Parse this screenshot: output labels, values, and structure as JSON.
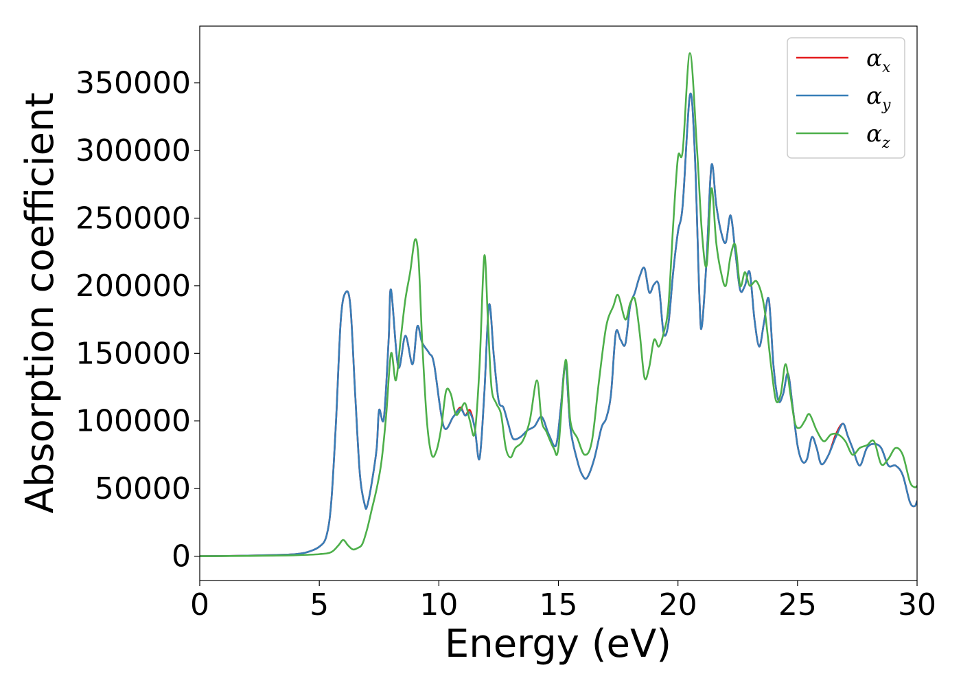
{
  "chart_data": {
    "type": "line",
    "xlabel": "Energy (eV)",
    "ylabel": "Absorption coefficient",
    "xlim": [
      0,
      30
    ],
    "ylim": [
      -18000,
      392000
    ],
    "xticks": [
      0,
      5,
      10,
      15,
      20,
      25,
      30
    ],
    "yticks": [
      0,
      50000,
      100000,
      150000,
      200000,
      250000,
      300000,
      350000
    ],
    "grid": false,
    "legend_position": "top-right",
    "legend": [
      {
        "base": "α",
        "sub": "x",
        "color": "#e41a1c"
      },
      {
        "base": "α",
        "sub": "y",
        "color": "#377eb8"
      },
      {
        "base": "α",
        "sub": "z",
        "color": "#4daf4a"
      }
    ],
    "series": [
      {
        "name": "αx",
        "color": "#e41a1c",
        "x": [
          0,
          1,
          2,
          3,
          4,
          4.5,
          5,
          5.3,
          5.5,
          5.7,
          5.9,
          6.1,
          6.3,
          6.5,
          6.7,
          6.9,
          7.0,
          7.2,
          7.4,
          7.5,
          7.7,
          7.9,
          8.0,
          8.3,
          8.6,
          8.9,
          9.1,
          9.3,
          9.6,
          9.8,
          10.2,
          10.6,
          10.9,
          11.1,
          11.3,
          11.5,
          11.7,
          11.9,
          12.1,
          12.3,
          12.5,
          12.7,
          12.9,
          13.1,
          13.4,
          13.7,
          14.0,
          14.3,
          14.6,
          14.9,
          15.1,
          15.3,
          15.5,
          15.8,
          16.0,
          16.2,
          16.5,
          16.8,
          17.0,
          17.2,
          17.4,
          17.6,
          17.8,
          18.0,
          18.2,
          18.4,
          18.6,
          18.8,
          19.0,
          19.2,
          19.4,
          19.6,
          19.8,
          20.0,
          20.2,
          20.5,
          20.7,
          20.9,
          21.0,
          21.2,
          21.4,
          21.6,
          21.8,
          22.0,
          22.2,
          22.4,
          22.6,
          22.8,
          23.0,
          23.2,
          23.4,
          23.6,
          23.8,
          24.0,
          24.2,
          24.4,
          24.6,
          24.8,
          25.0,
          25.2,
          25.4,
          25.6,
          25.8,
          26.0,
          26.3,
          26.6,
          26.9,
          27.1,
          27.3,
          27.6,
          27.9,
          28.2,
          28.5,
          28.8,
          29.1,
          29.4,
          29.7,
          29.9,
          30.0
        ],
        "y": [
          0,
          100,
          400,
          800,
          1500,
          3000,
          7000,
          15000,
          40000,
          100000,
          175000,
          195000,
          185000,
          120000,
          60000,
          38000,
          37000,
          55000,
          80000,
          108000,
          102000,
          160000,
          197000,
          140000,
          163000,
          142000,
          170000,
          158000,
          150000,
          142000,
          96000,
          103000,
          110000,
          104000,
          108000,
          95000,
          72000,
          120000,
          186000,
          148000,
          115000,
          110000,
          98000,
          87000,
          88000,
          93000,
          96000,
          103000,
          90000,
          82000,
          110000,
          142000,
          95000,
          70000,
          60000,
          58000,
          72000,
          95000,
          102000,
          120000,
          165000,
          160000,
          157000,
          185000,
          195000,
          207000,
          213000,
          195000,
          201000,
          200000,
          165000,
          172000,
          210000,
          240000,
          260000,
          341000,
          300000,
          190000,
          170000,
          220000,
          289000,
          260000,
          240000,
          232000,
          252000,
          225000,
          197000,
          200000,
          210000,
          175000,
          155000,
          173000,
          190000,
          140000,
          115000,
          120000,
          135000,
          110000,
          82000,
          70000,
          72000,
          88000,
          80000,
          68000,
          75000,
          90000,
          98000,
          89000,
          80000,
          67000,
          80000,
          83000,
          80000,
          67000,
          67000,
          60000,
          40000,
          37000,
          41000
        ]
      },
      {
        "name": "αy",
        "color": "#377eb8",
        "x": [
          0,
          1,
          2,
          3,
          4,
          4.5,
          5,
          5.3,
          5.5,
          5.7,
          5.9,
          6.1,
          6.3,
          6.5,
          6.7,
          6.9,
          7.0,
          7.2,
          7.4,
          7.5,
          7.7,
          7.9,
          8.0,
          8.3,
          8.6,
          8.9,
          9.1,
          9.3,
          9.6,
          9.8,
          10.2,
          10.6,
          10.9,
          11.1,
          11.3,
          11.5,
          11.7,
          11.9,
          12.1,
          12.3,
          12.5,
          12.7,
          12.9,
          13.1,
          13.4,
          13.7,
          14.0,
          14.3,
          14.6,
          14.9,
          15.1,
          15.3,
          15.5,
          15.8,
          16.0,
          16.2,
          16.5,
          16.8,
          17.0,
          17.2,
          17.4,
          17.6,
          17.8,
          18.0,
          18.2,
          18.4,
          18.6,
          18.8,
          19.0,
          19.2,
          19.4,
          19.6,
          19.8,
          20.0,
          20.2,
          20.5,
          20.7,
          20.9,
          21.0,
          21.2,
          21.4,
          21.6,
          21.8,
          22.0,
          22.2,
          22.4,
          22.6,
          22.8,
          23.0,
          23.2,
          23.4,
          23.6,
          23.8,
          24.0,
          24.2,
          24.4,
          24.6,
          24.8,
          25.0,
          25.2,
          25.4,
          25.6,
          25.8,
          26.0,
          26.3,
          26.6,
          26.9,
          27.1,
          27.3,
          27.6,
          27.9,
          28.2,
          28.5,
          28.8,
          29.1,
          29.4,
          29.7,
          29.9,
          30.0
        ],
        "y": [
          0,
          100,
          400,
          800,
          1500,
          3000,
          7000,
          15000,
          40000,
          100000,
          175000,
          195000,
          185000,
          120000,
          60000,
          38000,
          37000,
          55000,
          80000,
          108000,
          102000,
          160000,
          197000,
          140000,
          163000,
          142000,
          170000,
          158000,
          150000,
          142000,
          96000,
          103000,
          109000,
          104000,
          106000,
          95000,
          72000,
          120000,
          186000,
          148000,
          115000,
          110000,
          98000,
          87000,
          88000,
          93000,
          96000,
          103000,
          90000,
          82000,
          110000,
          142000,
          95000,
          70000,
          60000,
          58000,
          72000,
          95000,
          102000,
          120000,
          165000,
          160000,
          157000,
          185000,
          195000,
          207000,
          213000,
          195000,
          201000,
          200000,
          165000,
          172000,
          210000,
          240000,
          260000,
          341000,
          300000,
          190000,
          170000,
          220000,
          289000,
          260000,
          240000,
          232000,
          252000,
          225000,
          197000,
          200000,
          210000,
          175000,
          155000,
          173000,
          190000,
          140000,
          115000,
          120000,
          135000,
          110000,
          82000,
          70000,
          72000,
          88000,
          80000,
          68000,
          75000,
          88000,
          98000,
          89000,
          80000,
          67000,
          80000,
          83000,
          80000,
          67000,
          67000,
          60000,
          40000,
          37000,
          41000
        ]
      },
      {
        "name": "αz",
        "color": "#4daf4a",
        "x": [
          0,
          1,
          2,
          3,
          4,
          5,
          5.5,
          5.8,
          6.0,
          6.2,
          6.4,
          6.6,
          6.8,
          7.0,
          7.2,
          7.4,
          7.6,
          7.8,
          8.0,
          8.2,
          8.4,
          8.6,
          8.8,
          9.0,
          9.15,
          9.3,
          9.5,
          9.7,
          9.9,
          10.1,
          10.3,
          10.5,
          10.7,
          10.9,
          11.1,
          11.3,
          11.5,
          11.7,
          11.9,
          12.05,
          12.2,
          12.4,
          12.6,
          12.8,
          13.0,
          13.2,
          13.5,
          13.8,
          14.1,
          14.3,
          14.5,
          14.8,
          15.0,
          15.3,
          15.5,
          15.8,
          16.1,
          16.4,
          16.7,
          17.0,
          17.3,
          17.5,
          17.8,
          18.0,
          18.2,
          18.4,
          18.6,
          18.8,
          19.0,
          19.2,
          19.4,
          19.6,
          19.8,
          20.0,
          20.2,
          20.5,
          20.8,
          21.0,
          21.2,
          21.4,
          21.6,
          21.8,
          22.0,
          22.2,
          22.4,
          22.6,
          22.8,
          23.0,
          23.3,
          23.6,
          23.9,
          24.1,
          24.3,
          24.5,
          24.7,
          24.9,
          25.1,
          25.3,
          25.5,
          25.8,
          26.1,
          26.4,
          26.7,
          27.0,
          27.3,
          27.6,
          27.9,
          28.2,
          28.5,
          28.8,
          29.1,
          29.4,
          29.7,
          29.9,
          30.0
        ],
        "y": [
          0,
          50,
          200,
          400,
          700,
          1500,
          3000,
          8000,
          12000,
          8000,
          5000,
          6000,
          9000,
          20000,
          35000,
          50000,
          70000,
          105000,
          150000,
          130000,
          160000,
          190000,
          210000,
          234000,
          220000,
          160000,
          100000,
          75000,
          78000,
          95000,
          122000,
          120000,
          105000,
          108000,
          113000,
          100000,
          91000,
          140000,
          222000,
          175000,
          125000,
          113000,
          105000,
          80000,
          73000,
          80000,
          85000,
          100000,
          130000,
          100000,
          92000,
          80000,
          80000,
          145000,
          100000,
          87000,
          75000,
          85000,
          130000,
          170000,
          185000,
          193000,
          175000,
          187000,
          190000,
          165000,
          132000,
          140000,
          160000,
          155000,
          165000,
          185000,
          245000,
          295000,
          300000,
          372000,
          300000,
          240000,
          215000,
          272000,
          232000,
          210000,
          200000,
          222000,
          230000,
          200000,
          210000,
          200000,
          203000,
          185000,
          140000,
          115000,
          120000,
          142000,
          120000,
          98000,
          95000,
          100000,
          105000,
          93000,
          85000,
          90000,
          90000,
          85000,
          75000,
          80000,
          82000,
          85000,
          68000,
          72000,
          80000,
          75000,
          55000,
          51000,
          52000
        ]
      }
    ]
  }
}
